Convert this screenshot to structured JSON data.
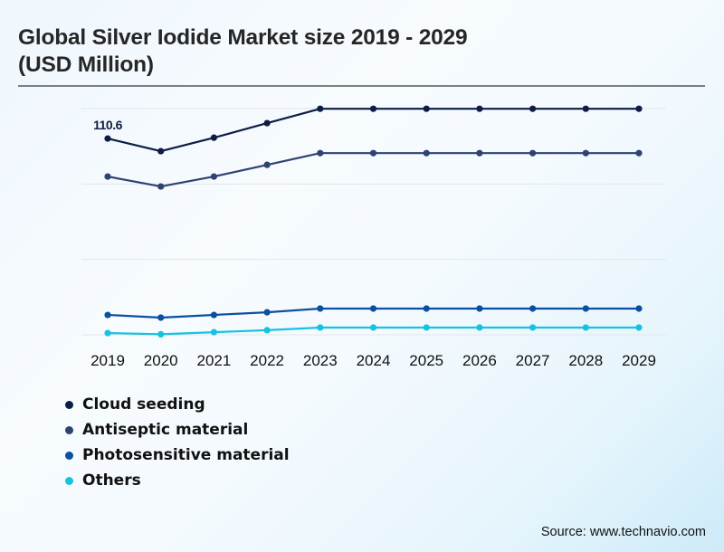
{
  "title_line1": "Global Silver Iodide Market size 2019 - 2029",
  "title_line2": "(USD Million)",
  "source": "Source: www.technavio.com",
  "chart_data": {
    "type": "line",
    "title": "Global Silver Iodide Market size 2019 - 2029 (USD Million)",
    "xlabel": "",
    "ylabel": "USD Million",
    "x": [
      "2019",
      "2020",
      "2021",
      "2022",
      "2023",
      "2024",
      "2025",
      "2026",
      "2027",
      "2028",
      "2029"
    ],
    "ylim": [
      0,
      127.5
    ],
    "yticks": [
      0,
      42.5,
      85,
      127.5
    ],
    "ytick_labels_visible": false,
    "grid": true,
    "legend_position": "bottom-left",
    "annotations": [
      {
        "series": "Cloud seeding",
        "x": "2019",
        "text": "110.6"
      }
    ],
    "series": [
      {
        "name": "Cloud seeding",
        "color": "#0d1d45",
        "values": [
          110.6,
          103.5,
          111.1,
          119.3,
          127.4,
          127.4,
          127.4,
          127.4,
          127.4,
          127.4,
          127.4
        ]
      },
      {
        "name": "Antiseptic material",
        "color": "#2e4373",
        "values": [
          89.2,
          83.6,
          89.2,
          95.8,
          102.4,
          102.4,
          102.4,
          102.4,
          102.4,
          102.4,
          102.4
        ]
      },
      {
        "name": "Photosensitive material",
        "color": "#0b4fa0",
        "values": [
          11.2,
          9.7,
          11.2,
          12.7,
          14.8,
          14.8,
          14.8,
          14.8,
          14.8,
          14.8,
          14.8
        ]
      },
      {
        "name": "Others",
        "color": "#16c2e2",
        "values": [
          1.0,
          0.3,
          1.5,
          2.6,
          4.1,
          4.1,
          4.1,
          4.1,
          4.1,
          4.1,
          4.1
        ]
      }
    ]
  }
}
